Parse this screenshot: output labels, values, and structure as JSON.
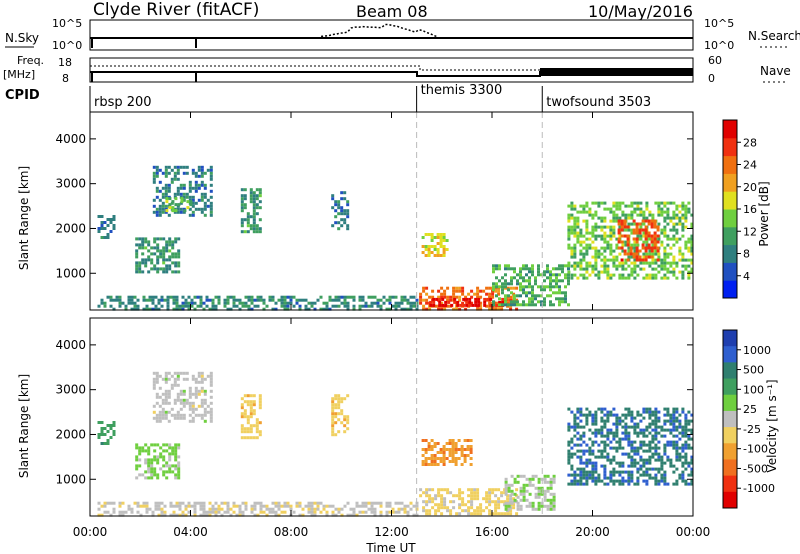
{
  "header": {
    "station": "Clyde River (fitACF)",
    "beam": "Beam 08",
    "date": "10/May/2016"
  },
  "params": {
    "nsky_label": "N.Sky",
    "nsearch_label": "N.Search",
    "freq_label_1": "Freq.",
    "freq_label_2": "[MHz]",
    "nave_label": "Nave",
    "cpid_label": "CPID",
    "left_ticks_top": [
      "10^5",
      "10^0"
    ],
    "right_ticks_top": [
      "10^5",
      "10^0"
    ],
    "left_ticks_freq": [
      "18",
      "8"
    ],
    "right_ticks_nave": [
      "60",
      "0"
    ],
    "cpid_segments": [
      {
        "start": 0,
        "end": 13.0,
        "label": "rbsp 200"
      },
      {
        "start": 13.0,
        "end": 18.0,
        "label": "themis 3300"
      },
      {
        "start": 18.0,
        "end": 24.0,
        "label": "twofsound 3503"
      }
    ]
  },
  "axes": {
    "x_ticks": [
      "00:00",
      "04:00",
      "08:00",
      "12:00",
      "16:00",
      "20:00",
      "00:00"
    ],
    "x_label": "Time UT",
    "y_label": "Slant Range [km]",
    "y_ticks": [
      "1000",
      "2000",
      "3000",
      "4000"
    ]
  },
  "colorbars": {
    "power": {
      "label": "Power [dB]",
      "ticks": [
        "4",
        "8",
        "12",
        "16",
        "20",
        "24",
        "28"
      ],
      "colors": [
        "#0020f0",
        "#2050c0",
        "#2f7f7f",
        "#3f9f5f",
        "#6fcf3f",
        "#e0e020",
        "#f0a020",
        "#f07010",
        "#f03010",
        "#e00000"
      ]
    },
    "velocity": {
      "label": "Velocity [m s⁻¹]",
      "ticks": [
        "1000",
        "500",
        "100",
        "25",
        "-25",
        "-100",
        "-500",
        "-1000"
      ],
      "colors": [
        "#1f3faf",
        "#2f5fcf",
        "#2f7f6f",
        "#3f9f5f",
        "#6fcf3f",
        "#bfbfbf",
        "#f0d060",
        "#f0a030",
        "#f07020",
        "#f03010",
        "#e00000"
      ]
    }
  },
  "chart_data": [
    {
      "type": "heatmap",
      "title": "Power",
      "xlabel": "Time UT",
      "ylabel": "Slant Range [km]",
      "xlim": [
        0,
        24
      ],
      "ylim": [
        180,
        4600
      ],
      "colorbar": {
        "label": "Power [dB]",
        "range": [
          0,
          32
        ]
      },
      "regions": [
        {
          "t": [
            0.3,
            0.9
          ],
          "r": [
            1800,
            2300
          ],
          "value": 8
        },
        {
          "t": [
            2.5,
            4.8
          ],
          "r": [
            2300,
            3400
          ],
          "value": 8
        },
        {
          "t": [
            3.0,
            4.0
          ],
          "r": [
            2400,
            2700
          ],
          "value": 14
        },
        {
          "t": [
            1.8,
            3.5
          ],
          "r": [
            1000,
            1800
          ],
          "value": 10
        },
        {
          "t": [
            6.0,
            6.8
          ],
          "r": [
            1900,
            2900
          ],
          "value": 10
        },
        {
          "t": [
            9.6,
            10.3
          ],
          "r": [
            2000,
            2900
          ],
          "value": 8
        },
        {
          "t": [
            0.3,
            13.0
          ],
          "r": [
            200,
            500
          ],
          "value": 9
        },
        {
          "t": [
            13.2,
            14.2
          ],
          "r": [
            1400,
            1900
          ],
          "value": 18
        },
        {
          "t": [
            13.1,
            17.0
          ],
          "r": [
            200,
            700
          ],
          "value": 24
        },
        {
          "t": [
            13.5,
            16.5
          ],
          "r": [
            250,
            450
          ],
          "value": 30
        },
        {
          "t": [
            16.0,
            19.0
          ],
          "r": [
            300,
            1200
          ],
          "value": 12
        },
        {
          "t": [
            19.0,
            23.9
          ],
          "r": [
            900,
            2600
          ],
          "value": 14
        },
        {
          "t": [
            21.0,
            22.6
          ],
          "r": [
            1300,
            2200
          ],
          "value": 26
        }
      ]
    },
    {
      "type": "heatmap",
      "title": "Velocity",
      "xlabel": "Time UT",
      "ylabel": "Slant Range [km]",
      "xlim": [
        0,
        24
      ],
      "ylim": [
        180,
        4600
      ],
      "colorbar": {
        "label": "Velocity [m s⁻¹]",
        "range": [
          -1000,
          1000
        ]
      },
      "regions": [
        {
          "t": [
            0.3,
            0.9
          ],
          "r": [
            1800,
            2300
          ],
          "value": 400
        },
        {
          "t": [
            2.5,
            4.8
          ],
          "r": [
            2300,
            3400
          ],
          "value": 0
        },
        {
          "t": [
            1.8,
            3.5
          ],
          "r": [
            1000,
            1800
          ],
          "value": 150
        },
        {
          "t": [
            6.0,
            6.8
          ],
          "r": [
            1900,
            2900
          ],
          "value": -200
        },
        {
          "t": [
            9.6,
            10.3
          ],
          "r": [
            2000,
            2900
          ],
          "value": -200
        },
        {
          "t": [
            0.3,
            13.0
          ],
          "r": [
            200,
            500
          ],
          "value": -40
        },
        {
          "t": [
            13.2,
            15.2
          ],
          "r": [
            1300,
            1900
          ],
          "value": -400
        },
        {
          "t": [
            13.1,
            17.0
          ],
          "r": [
            200,
            800
          ],
          "value": -150
        },
        {
          "t": [
            16.5,
            18.5
          ],
          "r": [
            300,
            1100
          ],
          "value": 80
        },
        {
          "t": [
            19.0,
            23.9
          ],
          "r": [
            900,
            2600
          ],
          "value": 600
        }
      ]
    }
  ]
}
